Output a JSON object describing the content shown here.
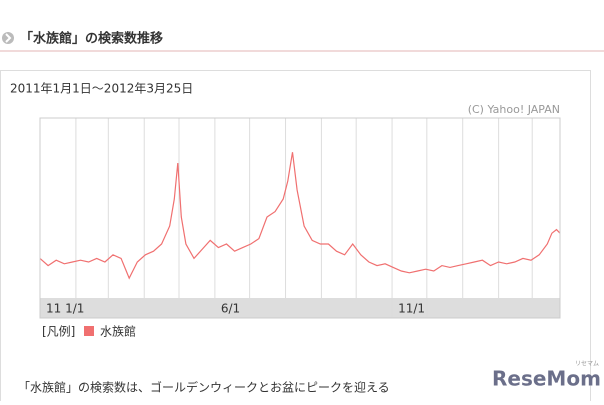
{
  "header": {
    "title": "「水族館」の検索数推移"
  },
  "chart_data": {
    "type": "line",
    "subtitle": "2011年1月1日～2012年3月25日",
    "source": "(C) Yahoo! JAPAN",
    "legend_title": "[凡例]",
    "x": [
      0,
      7,
      14,
      21,
      28,
      35,
      42,
      49,
      56,
      63,
      70,
      77,
      84,
      91,
      98,
      105,
      112,
      116,
      119,
      122,
      126,
      133,
      140,
      147,
      154,
      161,
      168,
      175,
      182,
      189,
      196,
      203,
      210,
      214,
      218,
      222,
      228,
      235,
      242,
      249,
      256,
      263,
      270,
      277,
      284,
      291,
      298,
      305,
      312,
      319,
      326,
      333,
      340,
      347,
      354,
      361,
      368,
      375,
      382,
      389,
      396,
      403,
      410,
      417,
      424,
      431,
      438,
      442,
      446,
      449
    ],
    "series": [
      {
        "name": "水族館",
        "color": "#f07070",
        "values": [
          22,
          18,
          21,
          19,
          20,
          21,
          20,
          22,
          20,
          24,
          22,
          11,
          20,
          24,
          26,
          30,
          40,
          55,
          75,
          45,
          30,
          22,
          27,
          32,
          28,
          30,
          26,
          28,
          30,
          33,
          45,
          48,
          55,
          65,
          81,
          60,
          40,
          32,
          30,
          30,
          26,
          24,
          30,
          24,
          20,
          18,
          19,
          17,
          15,
          14,
          15,
          16,
          15,
          18,
          17,
          18,
          19,
          20,
          21,
          18,
          20,
          19,
          20,
          22,
          21,
          24,
          30,
          36,
          38,
          36
        ]
      }
    ],
    "xlim": [
      0,
      449
    ],
    "xticks": [
      {
        "value": 0,
        "label": "11 1/1"
      },
      {
        "value": 151,
        "label": "6/1"
      },
      {
        "value": 304,
        "label": "11/1"
      }
    ],
    "xgrid": [
      0,
      31,
      59,
      90,
      120,
      151,
      181,
      212,
      243,
      273,
      304,
      334,
      365,
      396,
      425
    ],
    "ylim": [
      0,
      100
    ]
  },
  "caption": "「水族館」の検索数は、ゴールデンウィークとお盆にピークを迎える",
  "logo": {
    "text": "ReseMom",
    "kana": "リセマム"
  }
}
